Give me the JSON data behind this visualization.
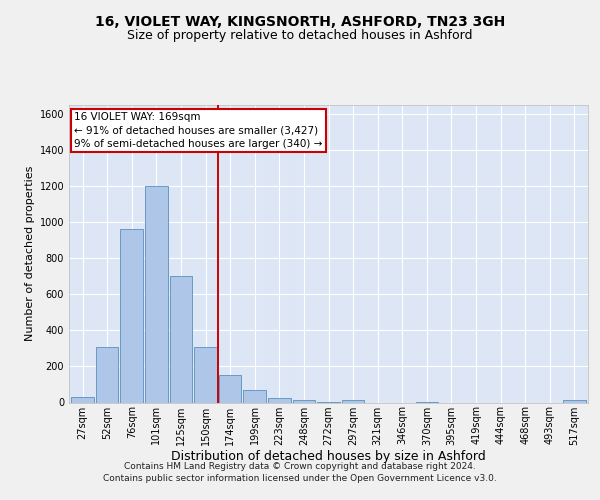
{
  "title_line1": "16, VIOLET WAY, KINGSNORTH, ASHFORD, TN23 3GH",
  "title_line2": "Size of property relative to detached houses in Ashford",
  "xlabel": "Distribution of detached houses by size in Ashford",
  "ylabel": "Number of detached properties",
  "bins": [
    "27sqm",
    "52sqm",
    "76sqm",
    "101sqm",
    "125sqm",
    "150sqm",
    "174sqm",
    "199sqm",
    "223sqm",
    "248sqm",
    "272sqm",
    "297sqm",
    "321sqm",
    "346sqm",
    "370sqm",
    "395sqm",
    "419sqm",
    "444sqm",
    "468sqm",
    "493sqm",
    "517sqm"
  ],
  "bar_values": [
    30,
    310,
    960,
    1200,
    700,
    310,
    155,
    70,
    25,
    15,
    5,
    15,
    0,
    0,
    5,
    0,
    0,
    0,
    0,
    0,
    15
  ],
  "bar_color": "#aec6e8",
  "bar_edge_color": "#5a8fc0",
  "vline_color": "#cc0000",
  "vline_pos": 5.5,
  "ylim": [
    0,
    1650
  ],
  "yticks": [
    0,
    200,
    400,
    600,
    800,
    1000,
    1200,
    1400,
    1600
  ],
  "annotation_text": "16 VIOLET WAY: 169sqm\n← 91% of detached houses are smaller (3,427)\n9% of semi-detached houses are larger (340) →",
  "annotation_box_color": "#ffffff",
  "annotation_box_edgecolor": "#cc0000",
  "footer_text": "Contains HM Land Registry data © Crown copyright and database right 2024.\nContains public sector information licensed under the Open Government Licence v3.0.",
  "background_color": "#dce6f5",
  "grid_color": "#ffffff",
  "fig_background": "#f0f0f0",
  "title_fontsize": 10,
  "subtitle_fontsize": 9,
  "ylabel_fontsize": 8,
  "xlabel_fontsize": 9,
  "tick_fontsize": 7,
  "annot_fontsize": 7.5,
  "footer_fontsize": 6.5
}
